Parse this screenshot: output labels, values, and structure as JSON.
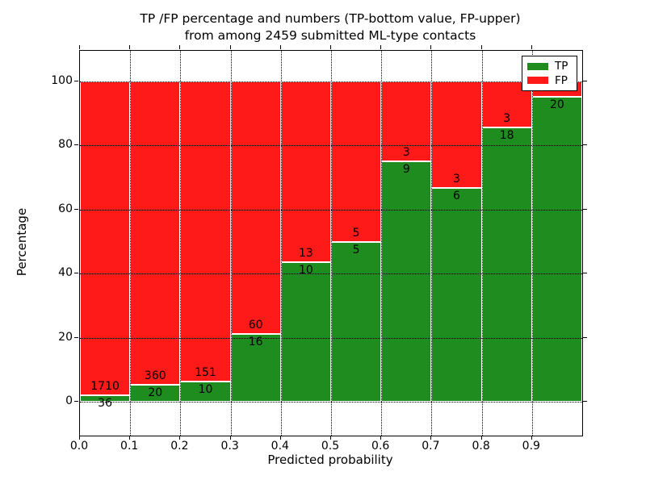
{
  "title": {
    "line1": "TP /FP percentage and numbers (TP-bottom value, FP-upper)",
    "line2": "from among 2459 submitted ML-type contacts"
  },
  "axes": {
    "xlabel": "Predicted probability",
    "ylabel": "Percentage",
    "x_tick_labels": [
      "0.0",
      "0.1",
      "0.2",
      "0.3",
      "0.4",
      "0.5",
      "0.6",
      "0.7",
      "0.8",
      "0.9"
    ],
    "y_tick_labels": [
      "0",
      "20",
      "40",
      "60",
      "80",
      "100"
    ],
    "y_tick_values": [
      0,
      20,
      40,
      60,
      80,
      100
    ]
  },
  "legend": {
    "items": [
      {
        "label": "TP",
        "color": "#1e8c1e"
      },
      {
        "label": "FP",
        "color": "#ff1a1a"
      }
    ],
    "position": "upper-right"
  },
  "chart_data": {
    "type": "bar",
    "subtype": "stacked-100pct-histogram",
    "title": "TP /FP percentage and numbers (TP-bottom value, FP-upper) from among 2459 submitted ML-type contacts",
    "xlabel": "Predicted probability",
    "ylabel": "Percentage",
    "total_contacts": 2459,
    "bins": [
      "0.0-0.1",
      "0.1-0.2",
      "0.2-0.3",
      "0.3-0.4",
      "0.4-0.5",
      "0.5-0.6",
      "0.6-0.7",
      "0.7-0.8",
      "0.8-0.9",
      "0.9-1.0"
    ],
    "series": [
      {
        "name": "TP",
        "color": "#1e8c1e",
        "counts": [
          36,
          20,
          10,
          16,
          10,
          5,
          9,
          6,
          18,
          20
        ],
        "labels": [
          "36",
          "20",
          "10",
          "16",
          "10",
          "5",
          "9",
          "6",
          "18",
          "20"
        ]
      },
      {
        "name": "FP",
        "color": "#ff1a1a",
        "counts": [
          1710,
          360,
          151,
          60,
          13,
          5,
          3,
          3,
          3,
          1
        ],
        "labels": [
          "1710",
          "360",
          "151",
          "60",
          "13",
          "5",
          "3",
          "3",
          "3",
          ""
        ]
      }
    ],
    "tp_percent": [
      2.06,
      5.26,
      6.21,
      21.05,
      43.48,
      50.0,
      75.0,
      66.67,
      85.71,
      95.24
    ],
    "xlim": [
      0.0,
      1.0
    ],
    "ylim": [
      -10.6,
      109.6
    ],
    "bar_edge_color": "#ffffff",
    "grid": {
      "style": "dotted",
      "color": "#000000"
    },
    "legend_position": "upper-right"
  }
}
